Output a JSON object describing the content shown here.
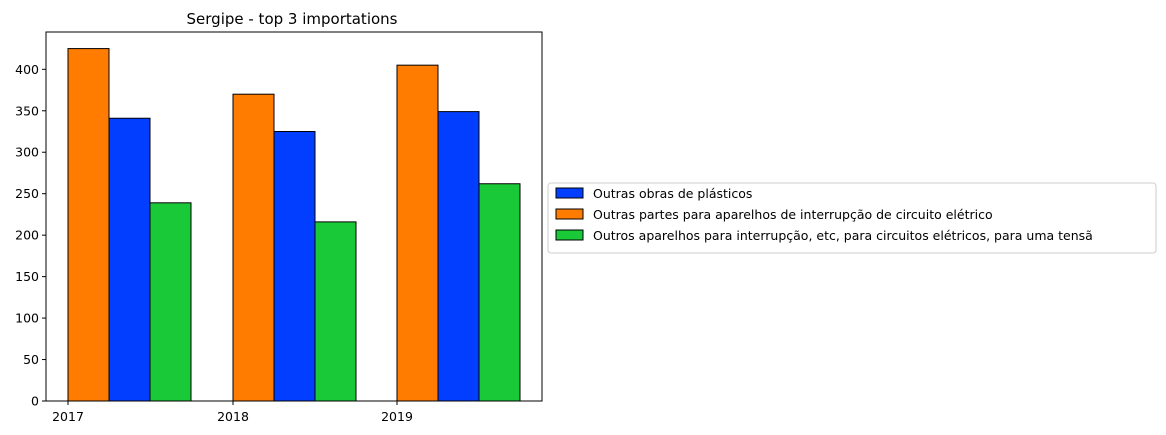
{
  "chart_data": {
    "type": "bar",
    "title": "Sergipe - top 3 importations",
    "xlabel": "",
    "ylabel": "",
    "categories": [
      "2017",
      "2018",
      "2019"
    ],
    "ylim": [
      0,
      445
    ],
    "yticks": [
      0,
      50,
      100,
      150,
      200,
      250,
      300,
      350,
      400
    ],
    "grid": false,
    "legend_position": "right",
    "series": [
      {
        "name": "Outras obras de plásticos",
        "color": "#023eff",
        "values": [
          341,
          325,
          349
        ]
      },
      {
        "name": "Outras partes para aparelhos de interrupção de circuito elétrico",
        "color": "#ff7c00",
        "values": [
          425,
          370,
          405
        ]
      },
      {
        "name": "Outros aparelhos para interrupção, etc, para circuitos elétricos, para uma tensã",
        "color": "#1ac938",
        "values": [
          239,
          216,
          262
        ]
      }
    ],
    "bar_order": [
      1,
      0,
      2
    ]
  }
}
